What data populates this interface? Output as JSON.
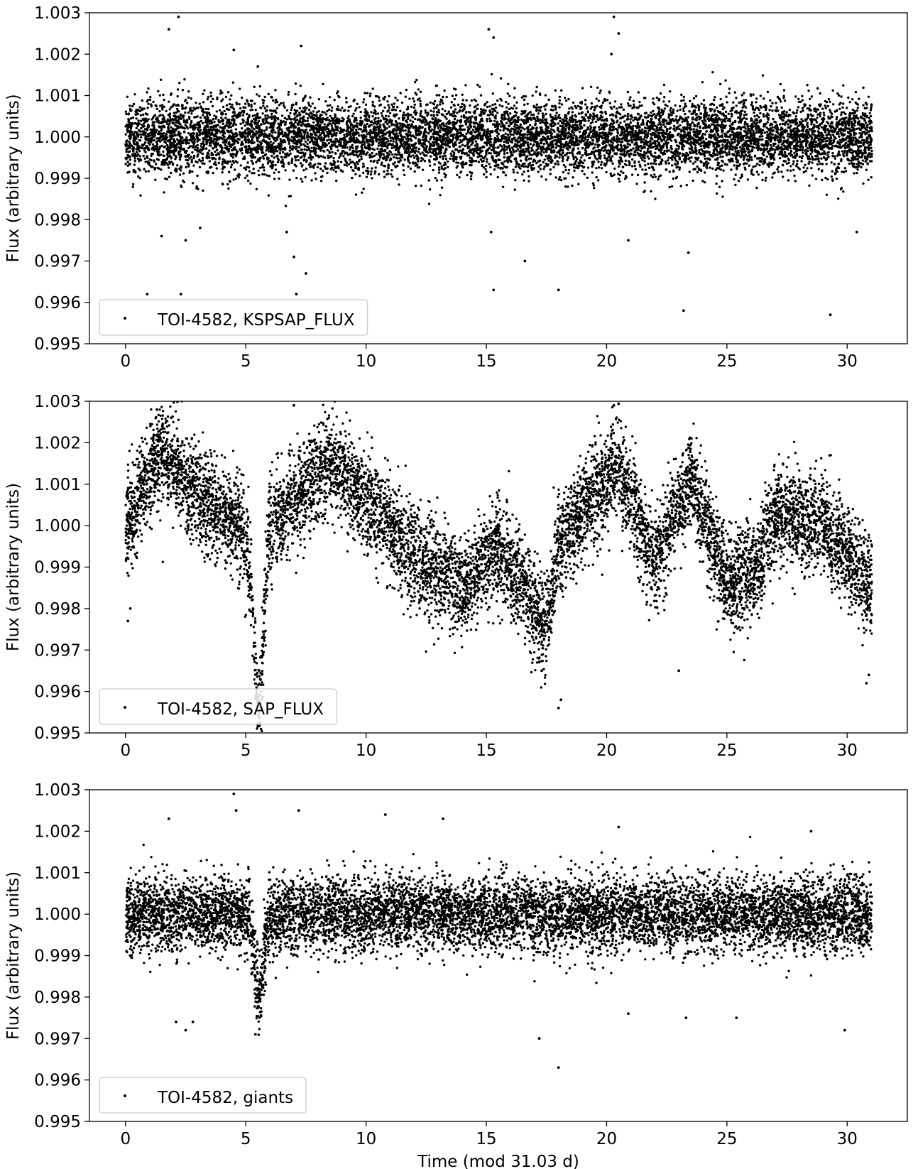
{
  "chart_data": [
    {
      "type": "scatter",
      "legend_label": "TOI-4582, KSPSAP_FLUX",
      "legend_position": "lower-left",
      "ylabel": "Flux (arbitrary units)",
      "xlabel": "",
      "xlim": [
        -1.5,
        32.5
      ],
      "ylim": [
        0.995,
        1.003
      ],
      "xticks": [
        0,
        5,
        10,
        15,
        20,
        25,
        30
      ],
      "yticks": [
        0.995,
        0.996,
        0.997,
        0.998,
        0.999,
        1.0,
        1.001,
        1.002,
        1.003
      ],
      "xtick_labels": [
        "0",
        "5",
        "10",
        "15",
        "20",
        "25",
        "30"
      ],
      "ytick_labels": [
        "0.995",
        "0.996",
        "0.997",
        "0.998",
        "0.999",
        "1.000",
        "1.001",
        "1.002",
        "1.003"
      ],
      "marker_color": "#000000",
      "series": [
        {
          "name": "TOI-4582, KSPSAP_FLUX",
          "baseline": 1.0,
          "trend": [],
          "noise_sigma": 0.00045,
          "dip": null,
          "outliers": [
            [
              1.8,
              1.0026
            ],
            [
              2.2,
              1.0029
            ],
            [
              1.5,
              0.9976
            ],
            [
              2.5,
              0.9975
            ],
            [
              0.9,
              0.9962
            ],
            [
              2.3,
              0.9962
            ],
            [
              7.3,
              1.0022
            ],
            [
              7.0,
              0.9971
            ],
            [
              7.5,
              0.9967
            ],
            [
              7.1,
              0.9962
            ],
            [
              4.5,
              1.0021
            ],
            [
              15.1,
              1.0026
            ],
            [
              15.3,
              1.0024
            ],
            [
              15.2,
              0.9977
            ],
            [
              15.3,
              0.9963
            ],
            [
              16.6,
              0.997
            ],
            [
              18.0,
              0.9963
            ],
            [
              20.3,
              1.0029
            ],
            [
              20.5,
              1.0025
            ],
            [
              20.2,
              1.002
            ],
            [
              20.9,
              0.9975
            ],
            [
              23.2,
              0.9958
            ],
            [
              23.4,
              0.9972
            ],
            [
              29.3,
              0.9957
            ],
            [
              30.4,
              0.9977
            ],
            [
              3.1,
              0.9978
            ],
            [
              5.5,
              1.0017
            ],
            [
              6.7,
              0.9977
            ]
          ]
        }
      ]
    },
    {
      "type": "scatter",
      "legend_label": "TOI-4582, SAP_FLUX",
      "legend_position": "lower-left",
      "ylabel": "Flux (arbitrary units)",
      "xlabel": "",
      "xlim": [
        -1.5,
        32.5
      ],
      "ylim": [
        0.995,
        1.003
      ],
      "xticks": [
        0,
        5,
        10,
        15,
        20,
        25,
        30
      ],
      "yticks": [
        0.995,
        0.996,
        0.997,
        0.998,
        0.999,
        1.0,
        1.001,
        1.002,
        1.003
      ],
      "xtick_labels": [
        "0",
        "5",
        "10",
        "15",
        "20",
        "25",
        "30"
      ],
      "ytick_labels": [
        "0.995",
        "0.996",
        "0.997",
        "0.998",
        "0.999",
        "1.000",
        "1.001",
        "1.002",
        "1.003"
      ],
      "marker_color": "#000000",
      "series": [
        {
          "name": "TOI-4582, SAP_FLUX",
          "baseline": 1.0,
          "trend": [
            [
              0,
              1.0
            ],
            [
              1.5,
              1.0018
            ],
            [
              3,
              1.0008
            ],
            [
              5,
              0.9998
            ],
            [
              5.5,
              0.9978
            ],
            [
              6,
              1.0
            ],
            [
              8.5,
              1.0016
            ],
            [
              10,
              1.0006
            ],
            [
              12.5,
              0.999
            ],
            [
              14,
              0.9985
            ],
            [
              15.5,
              0.9995
            ],
            [
              17.5,
              0.9975
            ],
            [
              18,
              0.9996
            ],
            [
              20.5,
              1.0015
            ],
            [
              22,
              0.999
            ],
            [
              23.5,
              1.0012
            ],
            [
              25,
              0.9985
            ],
            [
              26.3,
              0.999
            ],
            [
              27,
              1.0003
            ],
            [
              29,
              1.0
            ],
            [
              31,
              0.9985
            ]
          ],
          "noise_sigma": 0.0006,
          "dip": {
            "center": 5.55,
            "width": 0.35,
            "depth": 0.0025
          },
          "outliers": [
            [
              0.1,
              0.9977
            ],
            [
              0.2,
              0.998
            ],
            [
              1.3,
              1.0028
            ],
            [
              1.9,
              1.0026
            ],
            [
              7.0,
              1.0029
            ],
            [
              8.7,
              1.003
            ],
            [
              17.3,
              0.9965
            ],
            [
              18.0,
              0.9956
            ],
            [
              18.1,
              0.9958
            ],
            [
              23.0,
              0.9965
            ],
            [
              30.8,
              0.9962
            ],
            [
              30.9,
              0.9964
            ],
            [
              5.6,
              0.9963
            ],
            [
              20.3,
              1.0029
            ]
          ]
        }
      ]
    },
    {
      "type": "scatter",
      "legend_label": "TOI-4582, giants",
      "legend_position": "lower-left",
      "ylabel": "Flux (arbitrary units)",
      "xlabel": "Time (mod 31.03 d)",
      "xlim": [
        -1.5,
        32.5
      ],
      "ylim": [
        0.995,
        1.003
      ],
      "xticks": [
        0,
        5,
        10,
        15,
        20,
        25,
        30
      ],
      "yticks": [
        0.995,
        0.996,
        0.997,
        0.998,
        0.999,
        1.0,
        1.001,
        1.002,
        1.003
      ],
      "xtick_labels": [
        "0",
        "5",
        "10",
        "15",
        "20",
        "25",
        "30"
      ],
      "ytick_labels": [
        "0.995",
        "0.996",
        "0.997",
        "0.998",
        "0.999",
        "1.000",
        "1.001",
        "1.002",
        "1.003"
      ],
      "marker_color": "#000000",
      "series": [
        {
          "name": "TOI-4582, giants",
          "baseline": 1.0,
          "trend": [],
          "noise_sigma": 0.00045,
          "dip": {
            "center": 5.55,
            "width": 0.35,
            "depth": 0.002
          },
          "outliers": [
            [
              1.8,
              1.0023
            ],
            [
              4.5,
              1.0029
            ],
            [
              4.6,
              1.0025
            ],
            [
              7.2,
              1.0025
            ],
            [
              10.8,
              1.0024
            ],
            [
              13.2,
              1.0023
            ],
            [
              2.1,
              0.9974
            ],
            [
              2.5,
              0.9972
            ],
            [
              2.8,
              0.9974
            ],
            [
              17.2,
              0.997
            ],
            [
              18.0,
              0.9963
            ],
            [
              23.3,
              0.9975
            ],
            [
              25.4,
              0.9975
            ],
            [
              29.9,
              0.9972
            ],
            [
              5.4,
              0.9971
            ],
            [
              20.5,
              1.0021
            ],
            [
              28.5,
              1.002
            ],
            [
              20.9,
              0.9976
            ]
          ]
        }
      ]
    }
  ]
}
